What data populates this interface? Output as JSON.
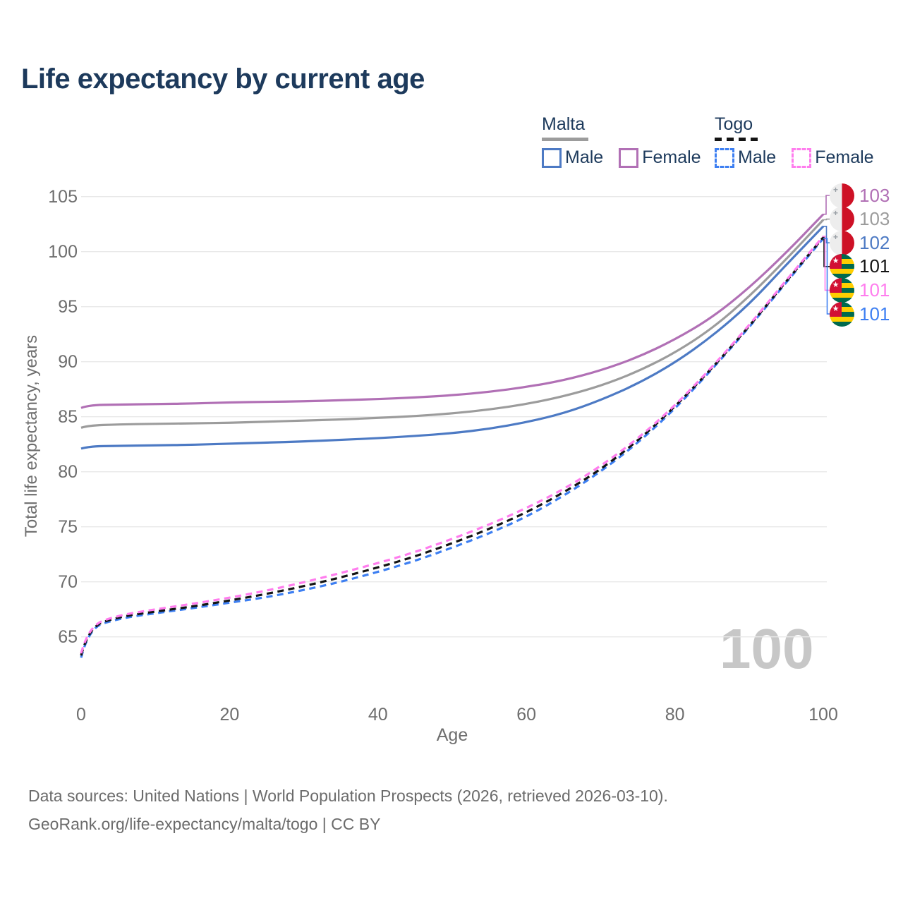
{
  "title": "Life expectancy by current age",
  "watermark": "100",
  "legend": {
    "groups": [
      {
        "id": "malta",
        "label": "Malta",
        "underline": "solid",
        "items": [
          {
            "id": "malta-male",
            "label": "Male",
            "color": "#4d7ac4",
            "dashed": false
          },
          {
            "id": "malta-female",
            "label": "Female",
            "color": "#b170b5",
            "dashed": false
          }
        ]
      },
      {
        "id": "togo",
        "label": "Togo",
        "underline": "dashed",
        "items": [
          {
            "id": "togo-male",
            "label": "Male",
            "color": "#3d7ff2",
            "dashed": true
          },
          {
            "id": "togo-female",
            "label": "Female",
            "color": "#ff7dee",
            "dashed": true
          }
        ]
      }
    ]
  },
  "chart_data": {
    "type": "line",
    "title": "Life expectancy by current age",
    "x_label": "Age",
    "y_label": "Total life expectancy, years",
    "x_range": [
      0,
      100
    ],
    "y_range": [
      65,
      105
    ],
    "x_ticks": [
      0,
      20,
      40,
      60,
      80,
      100
    ],
    "y_ticks": [
      105,
      100,
      95,
      90,
      85,
      80,
      75,
      70,
      65
    ],
    "grid": "horizontal",
    "legend_position": "top-right",
    "x": [
      0,
      1,
      5,
      10,
      15,
      20,
      25,
      30,
      35,
      40,
      45,
      50,
      55,
      60,
      65,
      70,
      75,
      80,
      85,
      90,
      95,
      100
    ],
    "series": [
      {
        "name": "Malta Female",
        "country": "malta",
        "color": "#b170b5",
        "dashed": false,
        "end_label": "103",
        "values": [
          85.8,
          86.05,
          86.1,
          86.15,
          86.2,
          86.3,
          86.35,
          86.4,
          86.5,
          86.6,
          86.75,
          86.95,
          87.25,
          87.7,
          88.3,
          89.2,
          90.4,
          92.0,
          94.0,
          96.7,
          99.9,
          103.4
        ]
      },
      {
        "name": "Malta Both sexes",
        "country": "malta",
        "color": "#9c9c9c",
        "dashed": false,
        "end_label": "103",
        "values": [
          84.0,
          84.2,
          84.3,
          84.35,
          84.4,
          84.45,
          84.55,
          84.65,
          84.75,
          84.9,
          85.05,
          85.3,
          85.65,
          86.15,
          86.85,
          87.8,
          89.1,
          90.8,
          93.0,
          95.9,
          99.3,
          102.9
        ]
      },
      {
        "name": "Malta Male",
        "country": "malta",
        "color": "#4d7ac4",
        "dashed": false,
        "end_label": "102",
        "values": [
          82.1,
          82.3,
          82.35,
          82.4,
          82.45,
          82.55,
          82.65,
          82.75,
          82.9,
          83.05,
          83.25,
          83.5,
          83.9,
          84.5,
          85.3,
          86.5,
          88.0,
          89.9,
          92.3,
          95.2,
          98.8,
          102.3
        ]
      },
      {
        "name": "Togo Both sexes",
        "country": "togo",
        "color": "#141414",
        "dashed": true,
        "end_label": "101",
        "values": [
          63.3,
          65.9,
          66.8,
          67.3,
          67.75,
          68.3,
          68.9,
          69.6,
          70.4,
          71.3,
          72.3,
          73.5,
          74.8,
          76.3,
          78.1,
          80.2,
          82.8,
          85.9,
          89.4,
          93.2,
          97.3,
          101.3
        ]
      },
      {
        "name": "Togo Female",
        "country": "togo",
        "color": "#ff7dee",
        "dashed": true,
        "end_label": "101",
        "values": [
          63.5,
          66.0,
          66.95,
          67.5,
          68.0,
          68.55,
          69.2,
          69.95,
          70.8,
          71.7,
          72.7,
          73.9,
          75.2,
          76.7,
          78.4,
          80.5,
          83.0,
          86.0,
          89.5,
          93.3,
          97.4,
          101.4
        ]
      },
      {
        "name": "Togo Male",
        "country": "togo",
        "color": "#3d7ff2",
        "dashed": true,
        "end_label": "101",
        "values": [
          63.1,
          65.8,
          66.65,
          67.15,
          67.6,
          68.1,
          68.6,
          69.25,
          70.0,
          70.9,
          71.9,
          73.1,
          74.4,
          75.9,
          77.8,
          80.0,
          82.6,
          85.7,
          89.3,
          93.1,
          97.2,
          101.2
        ]
      }
    ]
  },
  "footer": {
    "line1": "Data sources: United Nations | World Population Prospects (2026, retrieved 2026-03-10).",
    "line2": "GeoRank.org/life-expectancy/malta/togo | CC BY"
  }
}
